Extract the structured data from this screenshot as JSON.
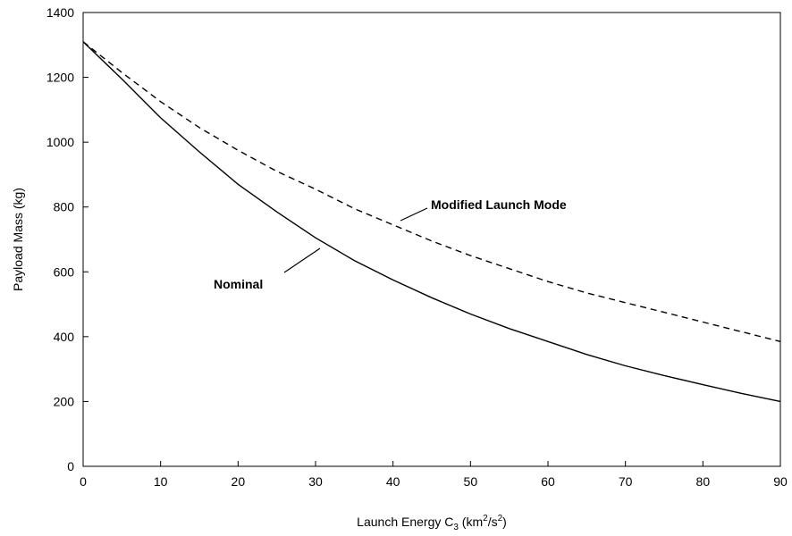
{
  "chart_data": {
    "type": "line",
    "title": "",
    "xlabel": "Launch Energy C",
    "xlabel_sub": "3",
    "xlabel_unit_open": " (km",
    "xlabel_unit_sup1": "2",
    "xlabel_unit_mid": "/s",
    "xlabel_unit_sup2": "2",
    "xlabel_unit_close": ")",
    "ylabel": "Payload Mass (kg)",
    "xlim": [
      0,
      90
    ],
    "ylim": [
      0,
      1400
    ],
    "xticks": [
      "0",
      "10",
      "20",
      "30",
      "40",
      "50",
      "60",
      "70",
      "80",
      "90"
    ],
    "yticks": [
      "0",
      "200",
      "400",
      "600",
      "800",
      "1000",
      "1200",
      "1400"
    ],
    "grid": false,
    "series": [
      {
        "name": "Nominal",
        "style": "solid",
        "color": "#000000",
        "x": [
          0,
          5,
          10,
          15,
          20,
          25,
          30,
          35,
          40,
          45,
          50,
          55,
          60,
          65,
          70,
          75,
          80,
          85,
          90
        ],
        "y": [
          1310,
          1195,
          1075,
          970,
          870,
          785,
          705,
          635,
          575,
          520,
          470,
          425,
          385,
          345,
          310,
          280,
          252,
          225,
          200
        ]
      },
      {
        "name": "Modified Launch Mode",
        "style": "dashed",
        "color": "#000000",
        "x": [
          0,
          5,
          10,
          15,
          20,
          25,
          30,
          35,
          40,
          45,
          50,
          55,
          60,
          65,
          70,
          75,
          80,
          85,
          90
        ],
        "y": [
          1310,
          1215,
          1125,
          1045,
          975,
          910,
          855,
          795,
          745,
          695,
          650,
          610,
          570,
          535,
          505,
          475,
          445,
          415,
          385
        ]
      }
    ]
  }
}
